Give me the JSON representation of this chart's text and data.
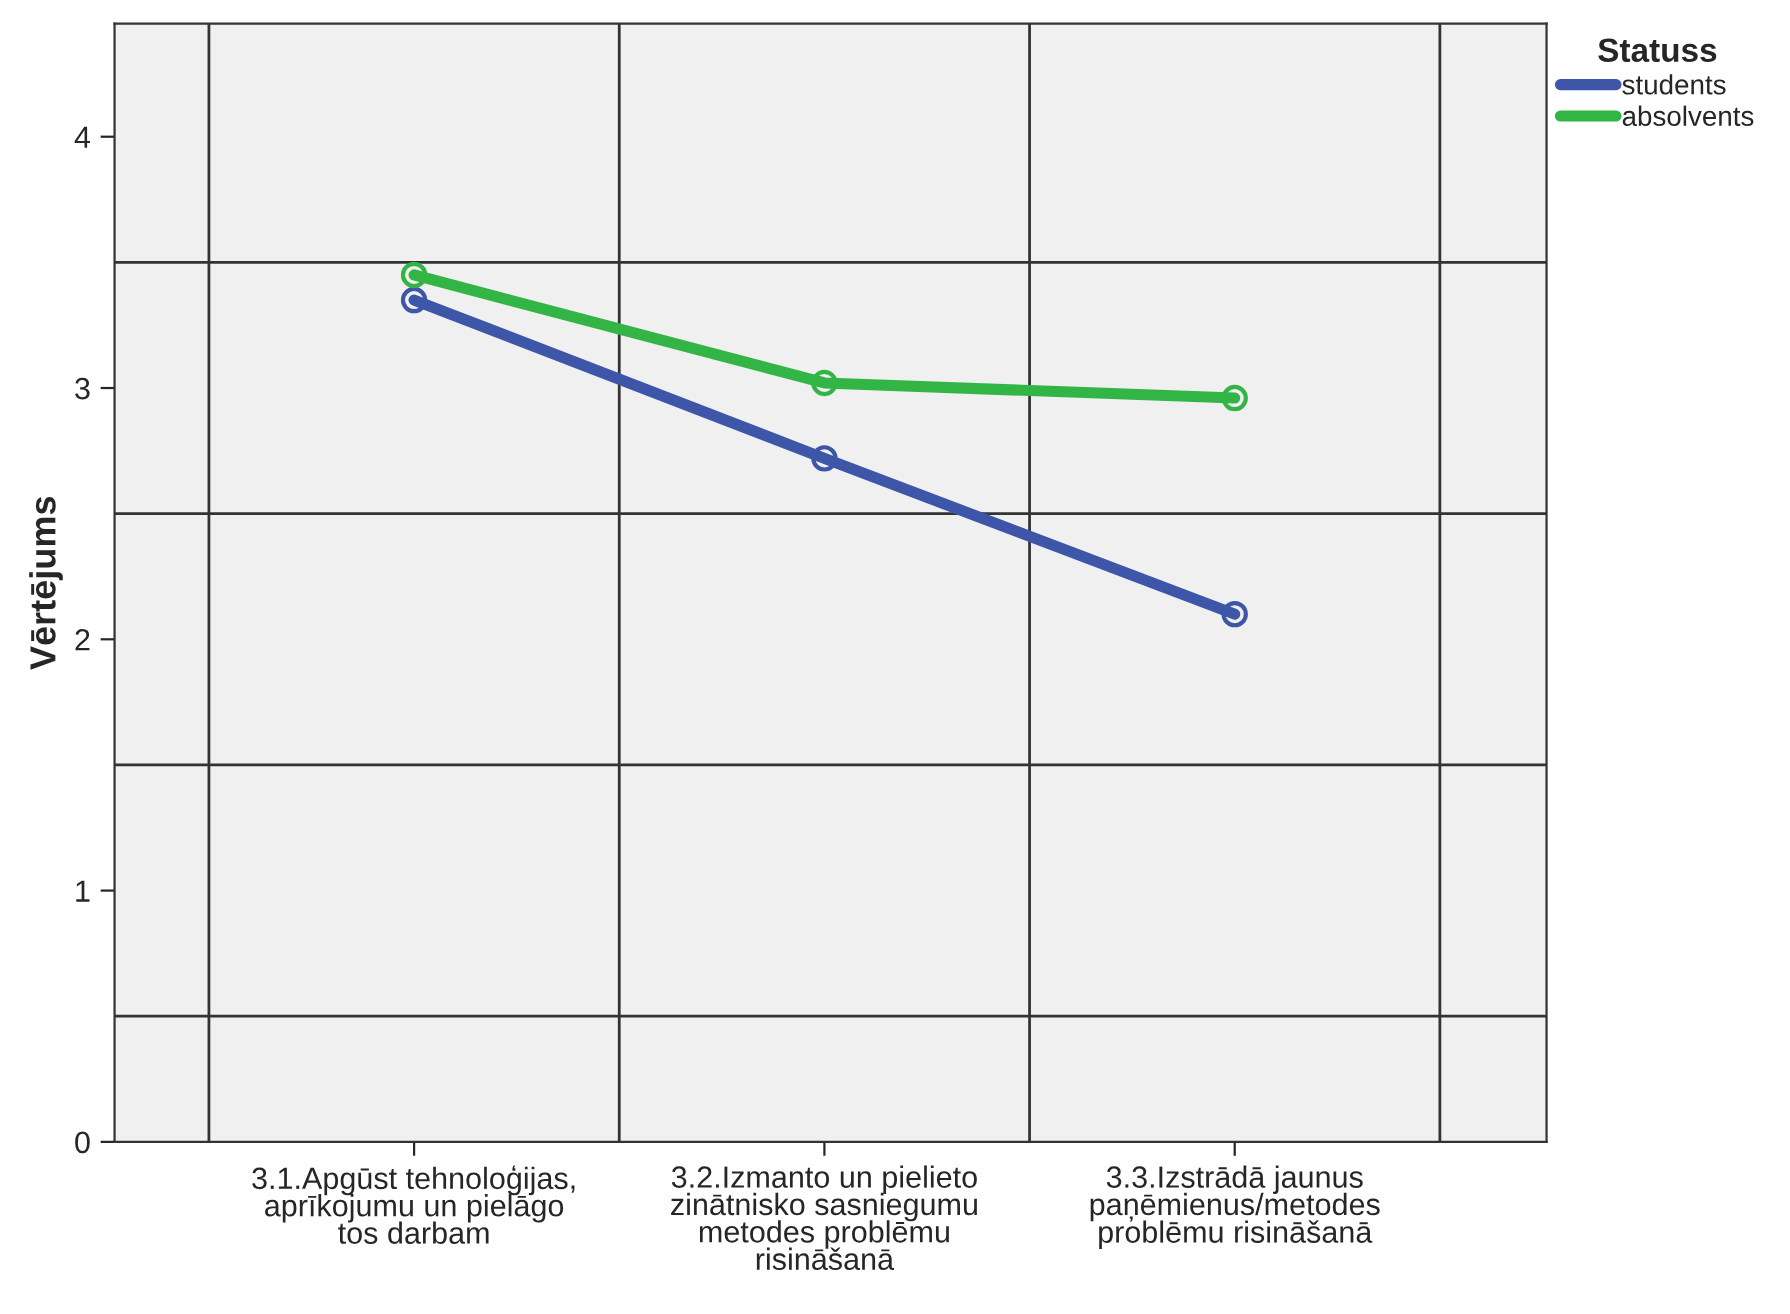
{
  "chart_data": {
    "type": "line",
    "ylabel": "Vērtējums",
    "legend_title": "Statuss",
    "categories": [
      "3.1.Apgūst tehnoloģijas,\naprīkojumu un pielāgo\ntos darbam",
      "3.2.Izmanto un pielieto\nzinātnisko sasniegumu\nmetodes problēmu\nrisināšanā",
      "3.3.Izstrādā jaunus\npaņēmienus/metodes\nproblēmu risināšanā"
    ],
    "series": [
      {
        "name": "students",
        "color": "#3e56a8",
        "values": [
          3.35,
          2.72,
          2.1
        ]
      },
      {
        "name": "absolvents",
        "color": "#33b545",
        "values": [
          3.45,
          3.02,
          2.96
        ]
      }
    ],
    "ylim": [
      0,
      4.45
    ],
    "yticks": [
      0,
      1,
      2,
      3,
      4
    ],
    "ref_lines": [
      {
        "axis": "y",
        "value": 0.5,
        "color": "#333333"
      },
      {
        "axis": "y",
        "value": 1.5,
        "color": "#333333"
      },
      {
        "axis": "y",
        "value": 2.5,
        "color": "#333333"
      },
      {
        "axis": "y",
        "value": 3.5,
        "color": "#333333"
      }
    ],
    "grid": "x",
    "marker": "circle",
    "line_style": "solid",
    "legend": "top right"
  }
}
